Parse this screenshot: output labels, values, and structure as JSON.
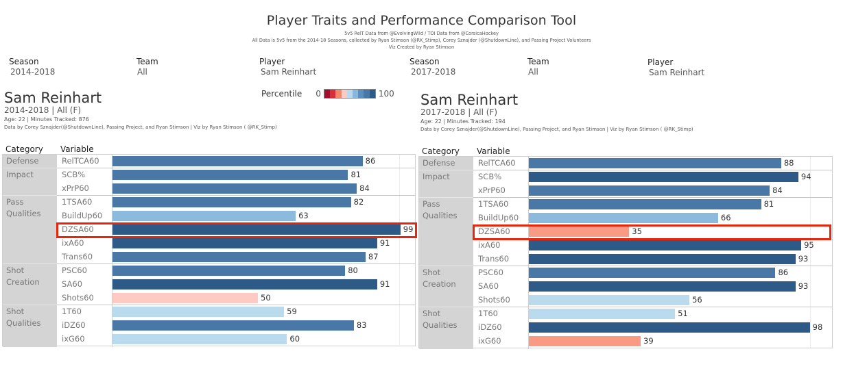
{
  "title": "Player Traits and Performance Comparison Tool",
  "subtitles": [
    "5v5 RelT Data from @EvolvingWild / TOI Data from @CorsicaHockey",
    "All Data is 5v5 from the 2014-18 Seasons, collected by Ryan Stimson (@RK_Stimp), Corey Sznajder (@ShutdownLine), and Passing Project Volunteers",
    "Viz Created by Ryan Stimson"
  ],
  "filters": [
    {
      "label": "Season",
      "value": "2014-2018"
    },
    {
      "label": "Team",
      "value": "All"
    },
    {
      "label": "Player",
      "value": "Sam Reinhart"
    },
    {
      "label": "Season",
      "value": "2017-2018"
    },
    {
      "label": "Team",
      "value": "All"
    },
    {
      "label": "Player",
      "value": "Sam Reinhart"
    }
  ],
  "legend": {
    "label": "Percentile",
    "min": "0",
    "max": "100",
    "colors": [
      "#a50f2d",
      "#d6303a",
      "#f4876c",
      "#fdcac1",
      "#bad9ee",
      "#8ab8dc",
      "#5a8fbf",
      "#4a78a6",
      "#2d5a87"
    ]
  },
  "headers": {
    "category": "Category",
    "variable": "Variable"
  },
  "colors": {
    "dark_blue": "#2d5a87",
    "mid_blue": "#4a78a6",
    "light_blue": "#8cbadc",
    "pale_blue": "#badaee",
    "pale_red": "#fdcac4",
    "salmon": "#f99a84",
    "highlight": "#e8260d",
    "category_bg": "#d4d4d4"
  },
  "panels": [
    {
      "player": "Sam Reinhart",
      "season_line": "2014-2018 | All (F)",
      "info_line": "Age: 22 | Minutes Tracked: 876",
      "credit_line": "Data by Corey Sznajder(@ShutdownLine), Passing Project, and Ryan Stimson | Viz by Ryan Stimson ( @RK_Stimp)",
      "highlighted_variable": "DZSA60",
      "categories": [
        {
          "name": "Defense",
          "rows": [
            {
              "variable": "RelTCA60",
              "value": 86,
              "color": "#4a78a6"
            }
          ]
        },
        {
          "name": "Impact",
          "rows": [
            {
              "variable": "SCB%",
              "value": 81,
              "color": "#4a78a6"
            },
            {
              "variable": "xPrP60",
              "value": 84,
              "color": "#4a78a6"
            }
          ]
        },
        {
          "name": "Pass Qualities",
          "rows": [
            {
              "variable": "1TSA60",
              "value": 82,
              "color": "#4a78a6"
            },
            {
              "variable": "BuildUp60",
              "value": 63,
              "color": "#8cbadc"
            },
            {
              "variable": "DZSA60",
              "value": 99,
              "color": "#2d5a87"
            },
            {
              "variable": "ixA60",
              "value": 91,
              "color": "#2d5a87"
            },
            {
              "variable": "Trans60",
              "value": 87,
              "color": "#4a78a6"
            }
          ]
        },
        {
          "name": "Shot Creation",
          "rows": [
            {
              "variable": "PSC60",
              "value": 80,
              "color": "#4a78a6"
            },
            {
              "variable": "SA60",
              "value": 91,
              "color": "#2d5a87"
            },
            {
              "variable": "Shots60",
              "value": 50,
              "color": "#fdcac4"
            }
          ]
        },
        {
          "name": "Shot Qualities",
          "rows": [
            {
              "variable": "1T60",
              "value": 59,
              "color": "#badaee"
            },
            {
              "variable": "iDZ60",
              "value": 83,
              "color": "#4a78a6"
            },
            {
              "variable": "ixG60",
              "value": 60,
              "color": "#badaee"
            }
          ]
        }
      ]
    },
    {
      "player": "Sam Reinhart",
      "season_line": "2017-2018 | All (F)",
      "info_line": "Age: 22 | Minutes Tracked: 194",
      "credit_line": "Data by Corey Sznajder(@ShutdownLine), Passing Project, and Ryan Stimson | Viz by Ryan Stimson ( @RK_Stimp)",
      "highlighted_variable": "DZSA60",
      "categories": [
        {
          "name": "Defense",
          "rows": [
            {
              "variable": "RelTCA60",
              "value": 88,
              "color": "#4a78a6"
            }
          ]
        },
        {
          "name": "Impact",
          "rows": [
            {
              "variable": "SCB%",
              "value": 94,
              "color": "#2d5a87"
            },
            {
              "variable": "xPrP60",
              "value": 84,
              "color": "#4a78a6"
            }
          ]
        },
        {
          "name": "Pass Qualities",
          "rows": [
            {
              "variable": "1TSA60",
              "value": 81,
              "color": "#4a78a6"
            },
            {
              "variable": "BuildUp60",
              "value": 66,
              "color": "#8cbadc"
            },
            {
              "variable": "DZSA60",
              "value": 35,
              "color": "#f99a84"
            },
            {
              "variable": "ixA60",
              "value": 95,
              "color": "#2d5a87"
            },
            {
              "variable": "Trans60",
              "value": 93,
              "color": "#2d5a87"
            }
          ]
        },
        {
          "name": "Shot Creation",
          "rows": [
            {
              "variable": "PSC60",
              "value": 86,
              "color": "#4a78a6"
            },
            {
              "variable": "SA60",
              "value": 93,
              "color": "#2d5a87"
            },
            {
              "variable": "Shots60",
              "value": 56,
              "color": "#badaee"
            }
          ]
        },
        {
          "name": "Shot Qualities",
          "rows": [
            {
              "variable": "1T60",
              "value": 51,
              "color": "#badaee"
            },
            {
              "variable": "iDZ60",
              "value": 98,
              "color": "#2d5a87"
            },
            {
              "variable": "ixG60",
              "value": 39,
              "color": "#f99a84"
            }
          ]
        }
      ]
    }
  ]
}
